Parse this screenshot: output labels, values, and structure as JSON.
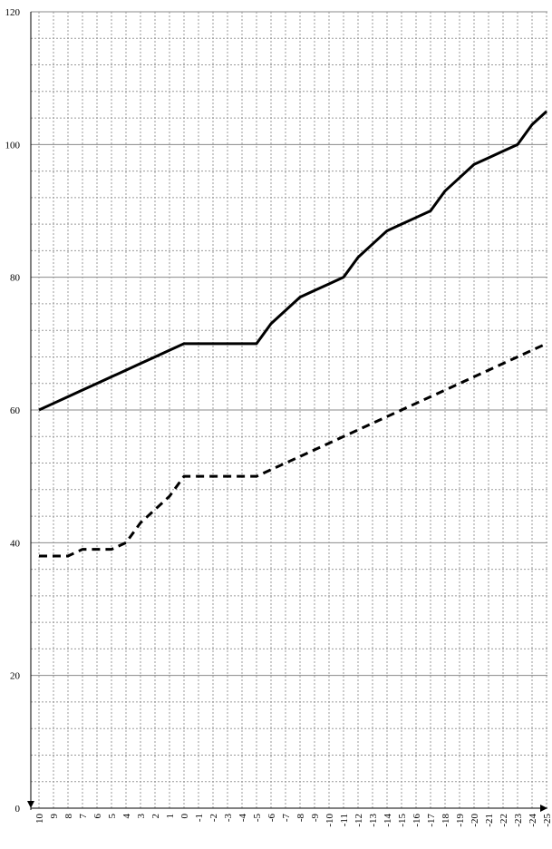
{
  "chart_data": {
    "type": "line",
    "title": "",
    "xlabel": "",
    "ylabel": "",
    "x": [
      10,
      9,
      8,
      7,
      6,
      5,
      4,
      3,
      2,
      1,
      0,
      -1,
      -2,
      -3,
      -4,
      -5,
      -6,
      -7,
      -8,
      -9,
      -10,
      -11,
      -12,
      -13,
      -14,
      -15,
      -16,
      -17,
      -18,
      -19,
      -20,
      -21,
      -22,
      -23,
      -24,
      -25
    ],
    "x_tick_labels": [
      "10",
      "9",
      "8",
      "7",
      "6",
      "5",
      "4",
      "3",
      "2",
      "1",
      "0",
      "-1",
      "-2",
      "-3",
      "-4",
      "-5",
      "-6",
      "-7",
      "-8",
      "-9",
      "-10",
      "-11",
      "-12",
      "-13",
      "-14",
      "-15",
      "-16",
      "-17",
      "-18",
      "-19",
      "-20",
      "-21",
      "-22",
      "-23",
      "-24",
      "-25"
    ],
    "y_tick_labels": [
      "0",
      "20",
      "40",
      "60",
      "80",
      "100",
      "120"
    ],
    "ylim": [
      0,
      120
    ],
    "y_major_step": 20,
    "y_minor_step": 4,
    "grid": true,
    "legend": "none",
    "series": [
      {
        "style": "solid",
        "color": "#000000",
        "values": [
          60,
          61,
          62,
          63,
          64,
          65,
          66,
          67,
          68,
          69,
          70,
          70,
          70,
          70,
          70,
          70,
          73,
          75,
          77,
          78,
          79,
          80,
          83,
          85,
          87,
          88,
          89,
          90,
          93,
          95,
          97,
          98,
          99,
          100,
          103,
          105
        ]
      },
      {
        "style": "dashed",
        "color": "#000000",
        "values": [
          38,
          38,
          38,
          39,
          39,
          39,
          40,
          43,
          45,
          47,
          50,
          50,
          50,
          50,
          50,
          50,
          51,
          52,
          53,
          54,
          55,
          56,
          57,
          58,
          59,
          60,
          61,
          62,
          63,
          64,
          65,
          66,
          67,
          68,
          69,
          70
        ]
      }
    ]
  }
}
